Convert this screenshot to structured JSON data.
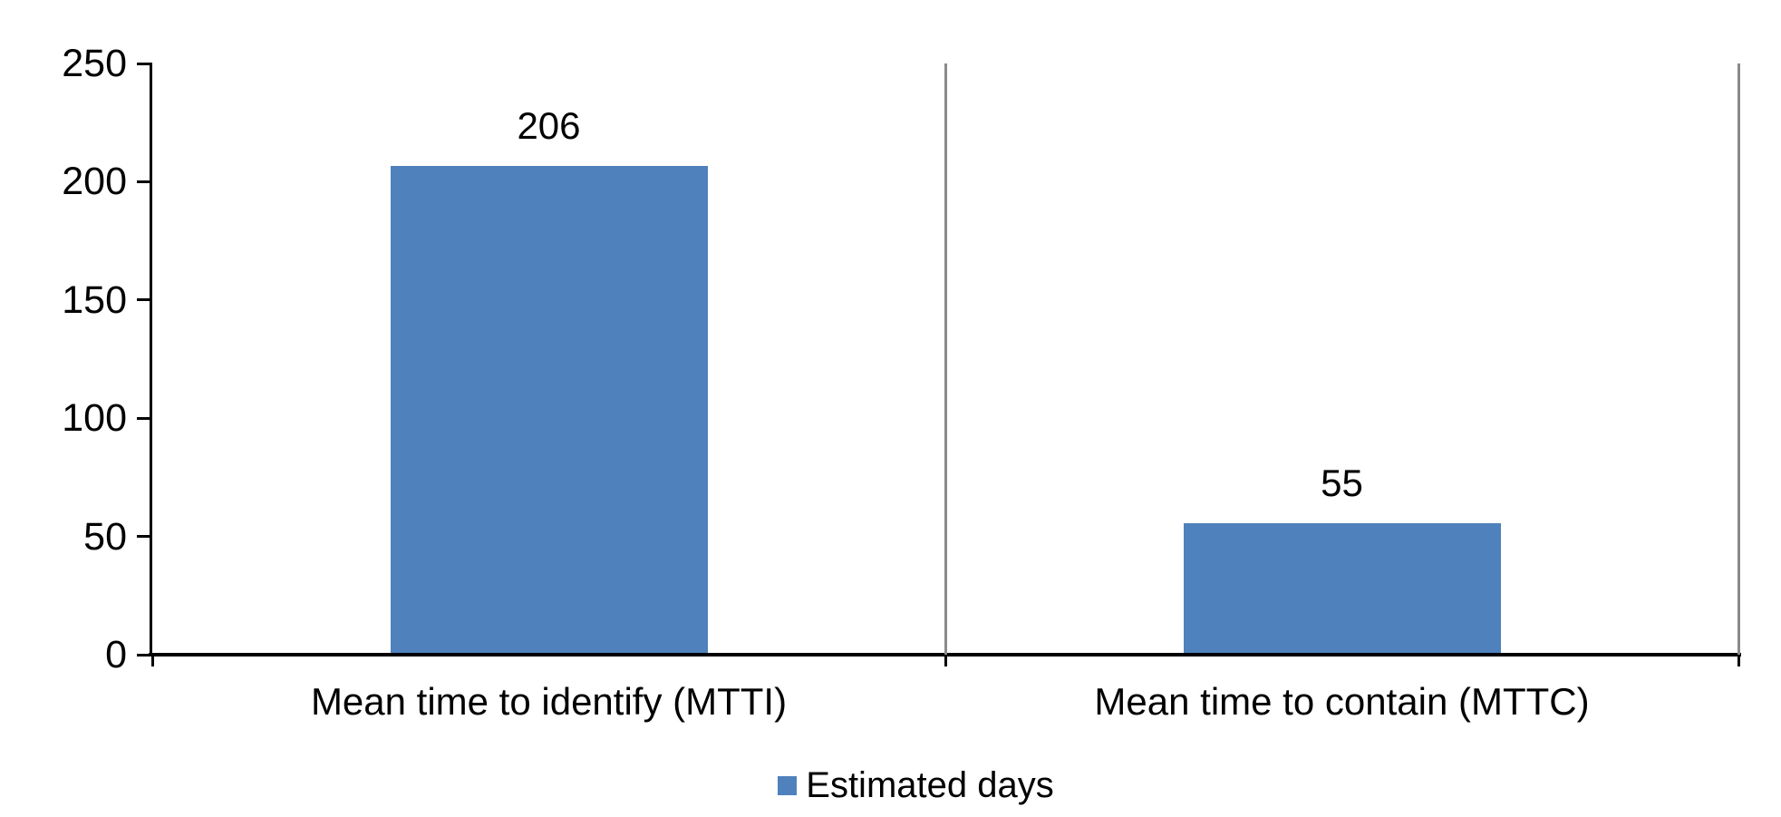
{
  "chart_data": {
    "type": "bar",
    "categories": [
      "Mean time to identify (MTTI)",
      "Mean time to contain (MTTC)"
    ],
    "series": [
      {
        "name": "Estimated days",
        "values": [
          206,
          55
        ]
      }
    ],
    "data_labels": [
      "206",
      "55"
    ],
    "ylim": [
      0,
      250
    ],
    "yticks": [
      0,
      50,
      100,
      150,
      200,
      250
    ],
    "legend": {
      "position": "bottom-center",
      "entries": [
        "Estimated days"
      ]
    },
    "layout_hints": {
      "grid": "vertical category separators only, no horizontal gridlines",
      "bar_width_fraction_of_category": 0.4
    },
    "colors": {
      "bar": "#4F81BD",
      "axis": "#000000",
      "separator": "#8A8A8A",
      "text": "#000000",
      "background": "#FFFFFF"
    }
  }
}
